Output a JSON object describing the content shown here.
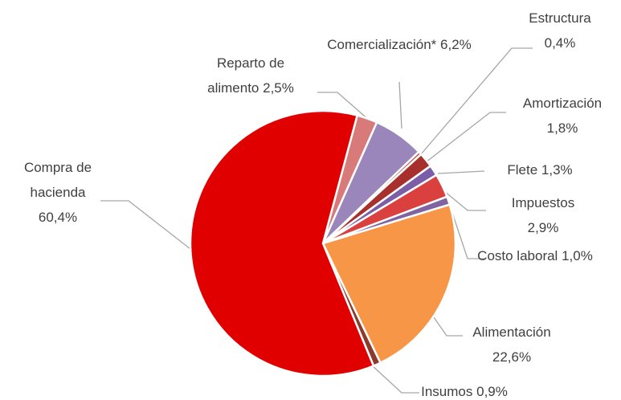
{
  "chart_data": {
    "type": "pie",
    "categories": [
      "Reparto de alimento",
      "Comercialización*",
      "Estructura",
      "Amortización",
      "Flete",
      "Impuestos",
      "Costo laboral",
      "Alimentación",
      "Insumos",
      "Compra de hacienda"
    ],
    "values": [
      2.5,
      6.2,
      0.4,
      1.8,
      1.3,
      2.9,
      1.0,
      22.6,
      0.9,
      60.4
    ],
    "value_labels": [
      "2,5%",
      "6,2%",
      "0,4%",
      "1,8%",
      "1,3%",
      "2,9%",
      "1,0%",
      "22,6%",
      "0,9%",
      "60,4%"
    ],
    "colors": [
      "#d87a7a",
      "#9a86ba",
      "#c0504d",
      "#a8302c",
      "#7b5ea7",
      "#d9403e",
      "#8064a2",
      "#f79646",
      "#8b3a2e",
      "#e00000"
    ]
  }
}
